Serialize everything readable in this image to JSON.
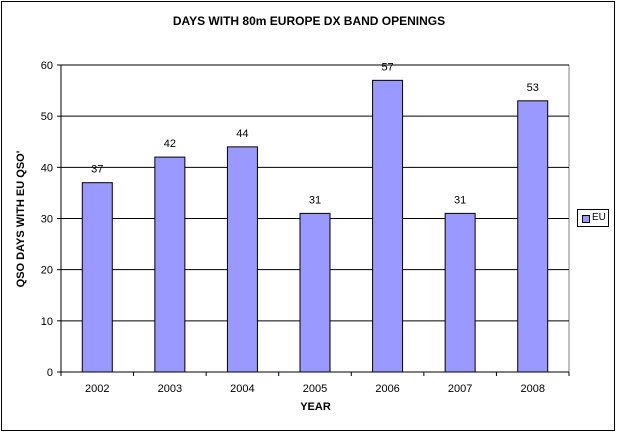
{
  "chart_data": {
    "type": "bar",
    "title": "DAYS WITH 80m EUROPE DX BAND OPENINGS",
    "xlabel": "YEAR",
    "ylabel": "QSO DAYS WITH EU QSO'",
    "categories": [
      "2002",
      "2003",
      "2004",
      "2005",
      "2006",
      "2007",
      "2008"
    ],
    "series": [
      {
        "name": "EU",
        "values": [
          37,
          42,
          44,
          31,
          57,
          31,
          53
        ],
        "color": "#9999ff"
      }
    ],
    "ylim": [
      0,
      60
    ],
    "yticks": [
      0,
      10,
      20,
      30,
      40,
      50,
      60
    ],
    "grid": true,
    "data_labels": true,
    "legend": "right"
  }
}
